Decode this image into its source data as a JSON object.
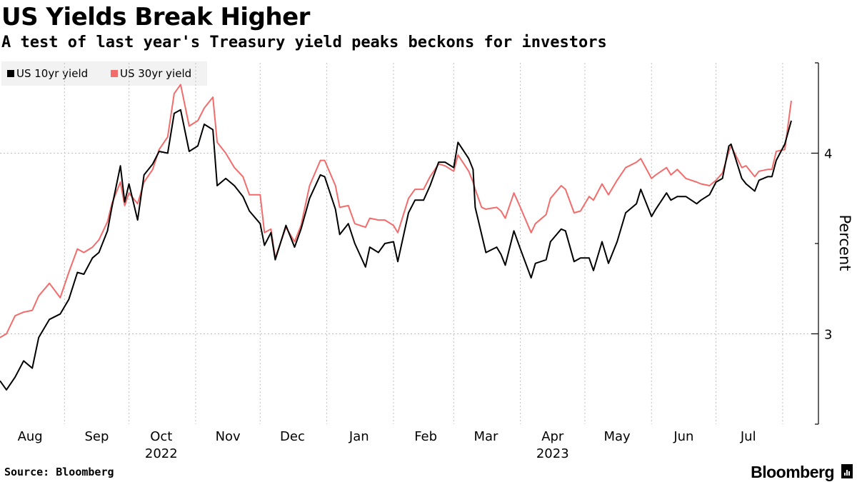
{
  "title": "US Yields Break Higher",
  "subtitle": "A test of last year's Treasury yield peaks beckons for investors",
  "source": "Source: Bloomberg",
  "brand": "Bloomberg",
  "colors": {
    "us10": "#000000",
    "us30": "#f36c6c",
    "grid": "#bfbfbf",
    "legend_bg": "#f2f2f2"
  },
  "chart_data": {
    "type": "line",
    "title": "US Yields Break Higher",
    "subtitle": "A test of last year's Treasury yield peaks beckons for investors",
    "ylabel": "Percent",
    "ylim": [
      2.5,
      4.5
    ],
    "yticks": [
      3,
      4
    ],
    "ytick_labels": [
      "3",
      "4"
    ],
    "xlim": [
      "2022-08-01",
      "2023-08-08"
    ],
    "month_labels": [
      "Aug",
      "Sep",
      "Oct",
      "Nov",
      "Dec",
      "Jan",
      "Feb",
      "Mar",
      "Apr",
      "May",
      "Jun",
      "Jul"
    ],
    "month_dates": [
      "2022-08-15",
      "2022-09-15",
      "2022-10-15",
      "2022-11-15",
      "2022-12-15",
      "2023-01-15",
      "2023-02-15",
      "2023-03-15",
      "2023-04-15",
      "2023-05-15",
      "2023-06-15",
      "2023-07-15"
    ],
    "year_labels": [
      "2022",
      "2023"
    ],
    "year_label_dates": [
      "2022-10-15",
      "2023-04-15"
    ],
    "gridline_dates": [
      "2022-08-31",
      "2022-09-30",
      "2022-10-31",
      "2022-11-30",
      "2022-12-31",
      "2023-01-31",
      "2023-02-28",
      "2023-03-31",
      "2023-04-30",
      "2023-05-31",
      "2023-06-30",
      "2023-07-31"
    ],
    "grid": true,
    "legend_position": "top-left",
    "series": [
      {
        "name": "US 10yr yield",
        "color": "#000000",
        "points": [
          [
            "2022-08-01",
            2.74
          ],
          [
            "2022-08-04",
            2.69
          ],
          [
            "2022-08-08",
            2.76
          ],
          [
            "2022-08-12",
            2.85
          ],
          [
            "2022-08-16",
            2.81
          ],
          [
            "2022-08-19",
            2.98
          ],
          [
            "2022-08-24",
            3.08
          ],
          [
            "2022-08-29",
            3.11
          ],
          [
            "2022-09-02",
            3.19
          ],
          [
            "2022-09-06",
            3.34
          ],
          [
            "2022-09-09",
            3.33
          ],
          [
            "2022-09-13",
            3.42
          ],
          [
            "2022-09-16",
            3.45
          ],
          [
            "2022-09-20",
            3.57
          ],
          [
            "2022-09-22",
            3.7
          ],
          [
            "2022-09-26",
            3.93
          ],
          [
            "2022-09-28",
            3.73
          ],
          [
            "2022-09-30",
            3.83
          ],
          [
            "2022-10-04",
            3.63
          ],
          [
            "2022-10-07",
            3.88
          ],
          [
            "2022-10-11",
            3.94
          ],
          [
            "2022-10-14",
            4.01
          ],
          [
            "2022-10-18",
            4.0
          ],
          [
            "2022-10-21",
            4.22
          ],
          [
            "2022-10-24",
            4.24
          ],
          [
            "2022-10-28",
            4.01
          ],
          [
            "2022-11-01",
            4.04
          ],
          [
            "2022-11-04",
            4.16
          ],
          [
            "2022-11-08",
            4.13
          ],
          [
            "2022-11-10",
            3.82
          ],
          [
            "2022-11-14",
            3.86
          ],
          [
            "2022-11-18",
            3.82
          ],
          [
            "2022-11-22",
            3.76
          ],
          [
            "2022-11-25",
            3.68
          ],
          [
            "2022-11-30",
            3.61
          ],
          [
            "2022-12-02",
            3.49
          ],
          [
            "2022-12-05",
            3.56
          ],
          [
            "2022-12-07",
            3.41
          ],
          [
            "2022-12-12",
            3.6
          ],
          [
            "2022-12-16",
            3.48
          ],
          [
            "2022-12-19",
            3.58
          ],
          [
            "2022-12-23",
            3.75
          ],
          [
            "2022-12-28",
            3.88
          ],
          [
            "2022-12-30",
            3.87
          ],
          [
            "2023-01-04",
            3.69
          ],
          [
            "2023-01-06",
            3.55
          ],
          [
            "2023-01-10",
            3.61
          ],
          [
            "2023-01-13",
            3.5
          ],
          [
            "2023-01-18",
            3.37
          ],
          [
            "2023-01-20",
            3.48
          ],
          [
            "2023-01-24",
            3.45
          ],
          [
            "2023-01-27",
            3.5
          ],
          [
            "2023-01-31",
            3.51
          ],
          [
            "2023-02-02",
            3.4
          ],
          [
            "2023-02-07",
            3.67
          ],
          [
            "2023-02-10",
            3.74
          ],
          [
            "2023-02-14",
            3.74
          ],
          [
            "2023-02-17",
            3.82
          ],
          [
            "2023-02-21",
            3.95
          ],
          [
            "2023-02-24",
            3.95
          ],
          [
            "2023-02-28",
            3.92
          ],
          [
            "2023-03-02",
            4.06
          ],
          [
            "2023-03-07",
            3.97
          ],
          [
            "2023-03-09",
            3.91
          ],
          [
            "2023-03-10",
            3.7
          ],
          [
            "2023-03-13",
            3.55
          ],
          [
            "2023-03-15",
            3.45
          ],
          [
            "2023-03-20",
            3.48
          ],
          [
            "2023-03-22",
            3.44
          ],
          [
            "2023-03-24",
            3.38
          ],
          [
            "2023-03-28",
            3.57
          ],
          [
            "2023-03-31",
            3.47
          ],
          [
            "2023-04-05",
            3.31
          ],
          [
            "2023-04-07",
            3.39
          ],
          [
            "2023-04-12",
            3.41
          ],
          [
            "2023-04-14",
            3.51
          ],
          [
            "2023-04-19",
            3.58
          ],
          [
            "2023-04-21",
            3.57
          ],
          [
            "2023-04-25",
            3.4
          ],
          [
            "2023-04-28",
            3.42
          ],
          [
            "2023-05-02",
            3.42
          ],
          [
            "2023-05-04",
            3.35
          ],
          [
            "2023-05-08",
            3.51
          ],
          [
            "2023-05-11",
            3.39
          ],
          [
            "2023-05-15",
            3.51
          ],
          [
            "2023-05-19",
            3.67
          ],
          [
            "2023-05-24",
            3.72
          ],
          [
            "2023-05-26",
            3.8
          ],
          [
            "2023-05-31",
            3.65
          ],
          [
            "2023-06-02",
            3.69
          ],
          [
            "2023-06-07",
            3.78
          ],
          [
            "2023-06-09",
            3.74
          ],
          [
            "2023-06-12",
            3.76
          ],
          [
            "2023-06-16",
            3.76
          ],
          [
            "2023-06-21",
            3.72
          ],
          [
            "2023-06-23",
            3.74
          ],
          [
            "2023-06-27",
            3.77
          ],
          [
            "2023-06-30",
            3.84
          ],
          [
            "2023-07-03",
            3.86
          ],
          [
            "2023-07-06",
            4.04
          ],
          [
            "2023-07-07",
            4.05
          ],
          [
            "2023-07-12",
            3.86
          ],
          [
            "2023-07-14",
            3.83
          ],
          [
            "2023-07-18",
            3.79
          ],
          [
            "2023-07-20",
            3.85
          ],
          [
            "2023-07-24",
            3.87
          ],
          [
            "2023-07-26",
            3.87
          ],
          [
            "2023-07-28",
            3.96
          ],
          [
            "2023-08-01",
            4.05
          ],
          [
            "2023-08-04",
            4.18
          ]
        ]
      },
      {
        "name": "US 30yr yield",
        "color": "#f36c6c",
        "points": [
          [
            "2022-08-01",
            2.98
          ],
          [
            "2022-08-04",
            3.0
          ],
          [
            "2022-08-08",
            3.1
          ],
          [
            "2022-08-12",
            3.12
          ],
          [
            "2022-08-16",
            3.13
          ],
          [
            "2022-08-19",
            3.21
          ],
          [
            "2022-08-24",
            3.28
          ],
          [
            "2022-08-29",
            3.2
          ],
          [
            "2022-09-02",
            3.34
          ],
          [
            "2022-09-06",
            3.47
          ],
          [
            "2022-09-09",
            3.45
          ],
          [
            "2022-09-13",
            3.48
          ],
          [
            "2022-09-16",
            3.52
          ],
          [
            "2022-09-20",
            3.62
          ],
          [
            "2022-09-22",
            3.72
          ],
          [
            "2022-09-26",
            3.84
          ],
          [
            "2022-09-28",
            3.71
          ],
          [
            "2022-09-30",
            3.78
          ],
          [
            "2022-10-04",
            3.72
          ],
          [
            "2022-10-07",
            3.84
          ],
          [
            "2022-10-11",
            3.91
          ],
          [
            "2022-10-14",
            4.02
          ],
          [
            "2022-10-18",
            4.09
          ],
          [
            "2022-10-21",
            4.33
          ],
          [
            "2022-10-24",
            4.38
          ],
          [
            "2022-10-28",
            4.15
          ],
          [
            "2022-11-01",
            4.18
          ],
          [
            "2022-11-04",
            4.25
          ],
          [
            "2022-11-08",
            4.31
          ],
          [
            "2022-11-10",
            4.06
          ],
          [
            "2022-11-14",
            4.0
          ],
          [
            "2022-11-18",
            3.92
          ],
          [
            "2022-11-22",
            3.87
          ],
          [
            "2022-11-25",
            3.77
          ],
          [
            "2022-11-30",
            3.77
          ],
          [
            "2022-12-02",
            3.56
          ],
          [
            "2022-12-05",
            3.58
          ],
          [
            "2022-12-07",
            3.42
          ],
          [
            "2022-12-12",
            3.59
          ],
          [
            "2022-12-16",
            3.51
          ],
          [
            "2022-12-19",
            3.6
          ],
          [
            "2022-12-23",
            3.82
          ],
          [
            "2022-12-28",
            3.96
          ],
          [
            "2022-12-30",
            3.96
          ],
          [
            "2023-01-04",
            3.82
          ],
          [
            "2023-01-06",
            3.7
          ],
          [
            "2023-01-10",
            3.71
          ],
          [
            "2023-01-13",
            3.61
          ],
          [
            "2023-01-18",
            3.59
          ],
          [
            "2023-01-20",
            3.64
          ],
          [
            "2023-01-24",
            3.63
          ],
          [
            "2023-01-27",
            3.63
          ],
          [
            "2023-01-31",
            3.6
          ],
          [
            "2023-02-02",
            3.56
          ],
          [
            "2023-02-07",
            3.75
          ],
          [
            "2023-02-10",
            3.8
          ],
          [
            "2023-02-14",
            3.8
          ],
          [
            "2023-02-17",
            3.87
          ],
          [
            "2023-02-21",
            3.94
          ],
          [
            "2023-02-24",
            3.93
          ],
          [
            "2023-02-28",
            3.9
          ],
          [
            "2023-03-02",
            3.99
          ],
          [
            "2023-03-07",
            3.9
          ],
          [
            "2023-03-09",
            3.84
          ],
          [
            "2023-03-10",
            3.8
          ],
          [
            "2023-03-13",
            3.7
          ],
          [
            "2023-03-15",
            3.69
          ],
          [
            "2023-03-20",
            3.7
          ],
          [
            "2023-03-22",
            3.68
          ],
          [
            "2023-03-24",
            3.64
          ],
          [
            "2023-03-28",
            3.78
          ],
          [
            "2023-03-31",
            3.7
          ],
          [
            "2023-04-05",
            3.56
          ],
          [
            "2023-04-07",
            3.61
          ],
          [
            "2023-04-12",
            3.66
          ],
          [
            "2023-04-14",
            3.75
          ],
          [
            "2023-04-19",
            3.82
          ],
          [
            "2023-04-21",
            3.8
          ],
          [
            "2023-04-25",
            3.67
          ],
          [
            "2023-04-28",
            3.68
          ],
          [
            "2023-05-02",
            3.76
          ],
          [
            "2023-05-04",
            3.74
          ],
          [
            "2023-05-08",
            3.83
          ],
          [
            "2023-05-11",
            3.77
          ],
          [
            "2023-05-15",
            3.85
          ],
          [
            "2023-05-19",
            3.92
          ],
          [
            "2023-05-24",
            3.95
          ],
          [
            "2023-05-26",
            3.97
          ],
          [
            "2023-05-31",
            3.86
          ],
          [
            "2023-06-02",
            3.88
          ],
          [
            "2023-06-07",
            3.92
          ],
          [
            "2023-06-09",
            3.88
          ],
          [
            "2023-06-12",
            3.91
          ],
          [
            "2023-06-16",
            3.86
          ],
          [
            "2023-06-21",
            3.84
          ],
          [
            "2023-06-23",
            3.83
          ],
          [
            "2023-06-27",
            3.82
          ],
          [
            "2023-06-30",
            3.85
          ],
          [
            "2023-07-03",
            3.89
          ],
          [
            "2023-07-06",
            4.01
          ],
          [
            "2023-07-07",
            4.04
          ],
          [
            "2023-07-12",
            3.92
          ],
          [
            "2023-07-14",
            3.93
          ],
          [
            "2023-07-18",
            3.87
          ],
          [
            "2023-07-20",
            3.9
          ],
          [
            "2023-07-24",
            3.91
          ],
          [
            "2023-07-26",
            3.91
          ],
          [
            "2023-07-28",
            4.01
          ],
          [
            "2023-08-01",
            4.02
          ],
          [
            "2023-08-04",
            4.29
          ]
        ]
      }
    ]
  }
}
